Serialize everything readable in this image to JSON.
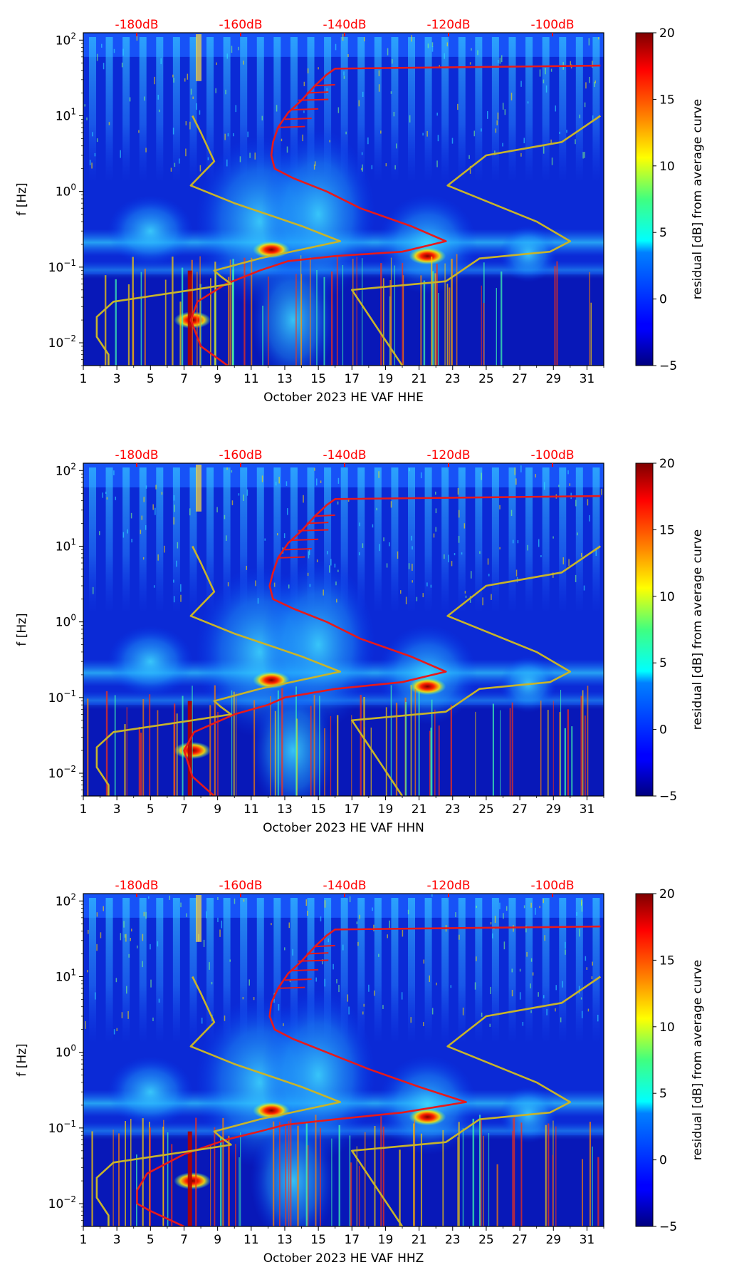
{
  "chart_data": [
    {
      "type": "heatmap",
      "title": "",
      "xlabel": "October 2023 HE VAF  HHE",
      "ylabel": "f [Hz]",
      "x_ticks": [
        "1",
        "3",
        "5",
        "7",
        "9",
        "11",
        "13",
        "15",
        "17",
        "19",
        "21",
        "23",
        "25",
        "27",
        "29",
        "31"
      ],
      "x_range": [
        1,
        32
      ],
      "y_scale": "log",
      "y_range": [
        0.005,
        125
      ],
      "y_ticks": [
        {
          "value": 0.01,
          "base": "10",
          "exp": "−2"
        },
        {
          "value": 0.1,
          "base": "10",
          "exp": "−1"
        },
        {
          "value": 1,
          "base": "10",
          "exp": "0"
        },
        {
          "value": 10,
          "base": "10",
          "exp": "1"
        },
        {
          "value": 100,
          "base": "10",
          "exp": "2"
        }
      ],
      "top_axis_labels": [
        "-180dB",
        "-160dB",
        "-140dB",
        "-120dB",
        "-100dB"
      ],
      "colorbar": {
        "label": "residual [dB] from average curve",
        "min": -5,
        "max": 20,
        "ticks": [
          "−5",
          "0",
          "5",
          "10",
          "15",
          "20"
        ]
      },
      "series": [
        {
          "name": "average PSD curve",
          "color": "#e8191a",
          "points": [
            [
              9.6,
              0.005
            ],
            [
              8,
              0.009
            ],
            [
              7.4,
              0.02
            ],
            [
              7.8,
              0.035
            ],
            [
              9.5,
              0.06
            ],
            [
              11.5,
              0.09
            ],
            [
              13.2,
              0.12
            ],
            [
              16,
              0.14
            ],
            [
              20,
              0.16
            ],
            [
              22.6,
              0.22
            ],
            [
              20.5,
              0.35
            ],
            [
              17.5,
              0.6
            ],
            [
              15.5,
              1.0
            ],
            [
              13.5,
              1.5
            ],
            [
              12.4,
              2.0
            ],
            [
              12.2,
              3.0
            ],
            [
              12.3,
              4.5
            ],
            [
              12.6,
              7
            ],
            [
              13.2,
              11
            ],
            [
              14,
              16
            ],
            [
              14.8,
              25
            ],
            [
              15.5,
              35
            ],
            [
              16,
              42
            ],
            [
              31.8,
              46
            ]
          ]
        },
        {
          "name": "noise model high",
          "color": "#c8b42a",
          "points": [
            [
              20,
              0.005
            ],
            [
              17,
              0.05
            ],
            [
              22.6,
              0.065
            ],
            [
              24.6,
              0.13
            ],
            [
              28.8,
              0.16
            ],
            [
              30,
              0.22
            ],
            [
              28,
              0.4
            ],
            [
              22.7,
              1.2
            ],
            [
              25,
              3
            ],
            [
              29.5,
              4.5
            ],
            [
              31.8,
              10
            ]
          ]
        },
        {
          "name": "noise model low",
          "color": "#c8b42a",
          "points": [
            [
              2.5,
              0.005
            ],
            [
              2.5,
              0.007
            ],
            [
              1.8,
              0.012
            ],
            [
              1.8,
              0.022
            ],
            [
              2.8,
              0.035
            ],
            [
              7.5,
              0.05
            ],
            [
              9.8,
              0.06
            ],
            [
              9.2,
              0.075
            ],
            [
              8.8,
              0.09
            ],
            [
              11.5,
              0.13
            ],
            [
              16.3,
              0.22
            ],
            [
              14,
              0.35
            ],
            [
              10,
              0.7
            ],
            [
              7.4,
              1.2
            ],
            [
              8.8,
              2.5
            ],
            [
              8,
              6
            ],
            [
              7.5,
              10
            ]
          ]
        }
      ],
      "hot_spots": [
        {
          "x": 12.2,
          "f": 0.17,
          "value": 18
        },
        {
          "x": 21.5,
          "f": 0.14,
          "value": 16
        },
        {
          "x": 7.5,
          "f": 0.02,
          "value": 20
        }
      ]
    },
    {
      "type": "heatmap",
      "title": "",
      "xlabel": "October 2023 HE VAF  HHN",
      "ylabel": "f [Hz]",
      "x_ticks": [
        "1",
        "3",
        "5",
        "7",
        "9",
        "11",
        "13",
        "15",
        "17",
        "19",
        "21",
        "23",
        "25",
        "27",
        "29",
        "31"
      ],
      "x_range": [
        1,
        32
      ],
      "y_scale": "log",
      "y_range": [
        0.005,
        125
      ],
      "y_ticks": [
        {
          "value": 0.01,
          "base": "10",
          "exp": "−2"
        },
        {
          "value": 0.1,
          "base": "10",
          "exp": "−1"
        },
        {
          "value": 1,
          "base": "10",
          "exp": "0"
        },
        {
          "value": 10,
          "base": "10",
          "exp": "1"
        },
        {
          "value": 100,
          "base": "10",
          "exp": "2"
        }
      ],
      "top_axis_labels": [
        "-180dB",
        "-160dB",
        "-140dB",
        "-120dB",
        "-100dB"
      ],
      "colorbar": {
        "label": "residual [dB] from average curve",
        "min": -5,
        "max": 20,
        "ticks": [
          "−5",
          "0",
          "5",
          "10",
          "15",
          "20"
        ]
      },
      "series": [
        {
          "name": "average PSD curve",
          "color": "#e8191a",
          "points": [
            [
              8.8,
              0.005
            ],
            [
              7.5,
              0.009
            ],
            [
              7.0,
              0.02
            ],
            [
              7.6,
              0.035
            ],
            [
              10,
              0.06
            ],
            [
              12,
              0.08
            ],
            [
              13,
              0.1
            ],
            [
              16,
              0.13
            ],
            [
              20,
              0.16
            ],
            [
              22.6,
              0.22
            ],
            [
              20.5,
              0.35
            ],
            [
              17.5,
              0.6
            ],
            [
              15.5,
              1.0
            ],
            [
              13.5,
              1.5
            ],
            [
              12.3,
              2.0
            ],
            [
              12.1,
              3.0
            ],
            [
              12.3,
              4.5
            ],
            [
              12.6,
              7
            ],
            [
              13.2,
              11
            ],
            [
              14,
              16
            ],
            [
              14.8,
              25
            ],
            [
              15.5,
              35
            ],
            [
              16,
              42
            ],
            [
              31.8,
              46
            ]
          ]
        },
        {
          "name": "noise model high",
          "color": "#c8b42a",
          "points": [
            [
              20,
              0.005
            ],
            [
              17,
              0.05
            ],
            [
              22.6,
              0.065
            ],
            [
              24.6,
              0.13
            ],
            [
              28.8,
              0.16
            ],
            [
              30,
              0.22
            ],
            [
              28,
              0.4
            ],
            [
              22.7,
              1.2
            ],
            [
              25,
              3
            ],
            [
              29.5,
              4.5
            ],
            [
              31.8,
              10
            ]
          ]
        },
        {
          "name": "noise model low",
          "color": "#c8b42a",
          "points": [
            [
              2.5,
              0.005
            ],
            [
              2.5,
              0.007
            ],
            [
              1.8,
              0.012
            ],
            [
              1.8,
              0.022
            ],
            [
              2.8,
              0.035
            ],
            [
              7.5,
              0.05
            ],
            [
              9.8,
              0.06
            ],
            [
              9.2,
              0.075
            ],
            [
              8.8,
              0.09
            ],
            [
              11.5,
              0.13
            ],
            [
              16.3,
              0.22
            ],
            [
              14,
              0.35
            ],
            [
              10,
              0.7
            ],
            [
              7.4,
              1.2
            ],
            [
              8.8,
              2.5
            ],
            [
              8,
              6
            ],
            [
              7.5,
              10
            ]
          ]
        }
      ],
      "hot_spots": [
        {
          "x": 12.2,
          "f": 0.17,
          "value": 18
        },
        {
          "x": 21.5,
          "f": 0.14,
          "value": 16
        },
        {
          "x": 7.5,
          "f": 0.02,
          "value": 20
        }
      ]
    },
    {
      "type": "heatmap",
      "title": "",
      "xlabel": "October 2023 HE VAF  HHZ",
      "ylabel": "f [Hz]",
      "x_ticks": [
        "1",
        "3",
        "5",
        "7",
        "9",
        "11",
        "13",
        "15",
        "17",
        "19",
        "21",
        "23",
        "25",
        "27",
        "29",
        "31"
      ],
      "x_range": [
        1,
        32
      ],
      "y_scale": "log",
      "y_range": [
        0.005,
        125
      ],
      "y_ticks": [
        {
          "value": 0.01,
          "base": "10",
          "exp": "−2"
        },
        {
          "value": 0.1,
          "base": "10",
          "exp": "−1"
        },
        {
          "value": 1,
          "base": "10",
          "exp": "0"
        },
        {
          "value": 10,
          "base": "10",
          "exp": "1"
        },
        {
          "value": 100,
          "base": "10",
          "exp": "2"
        }
      ],
      "top_axis_labels": [
        "-180dB",
        "-160dB",
        "-140dB",
        "-120dB",
        "-100dB"
      ],
      "colorbar": {
        "label": "residual [dB] from average curve",
        "min": -5,
        "max": 20,
        "ticks": [
          "−5",
          "0",
          "5",
          "10",
          "15",
          "20"
        ]
      },
      "series": [
        {
          "name": "average PSD curve",
          "color": "#e8191a",
          "points": [
            [
              7,
              0.005
            ],
            [
              5,
              0.008
            ],
            [
              4.2,
              0.01
            ],
            [
              4.2,
              0.015
            ],
            [
              4.8,
              0.025
            ],
            [
              7,
              0.045
            ],
            [
              9.5,
              0.07
            ],
            [
              11.5,
              0.09
            ],
            [
              13,
              0.11
            ],
            [
              16,
              0.13
            ],
            [
              20,
              0.16
            ],
            [
              23.8,
              0.22
            ],
            [
              21,
              0.35
            ],
            [
              18,
              0.6
            ],
            [
              15.5,
              1.0
            ],
            [
              13.5,
              1.5
            ],
            [
              12.4,
              2.0
            ],
            [
              12.1,
              3.0
            ],
            [
              12.2,
              4.5
            ],
            [
              12.6,
              7
            ],
            [
              13.2,
              11
            ],
            [
              14,
              16
            ],
            [
              14.8,
              25
            ],
            [
              15.5,
              35
            ],
            [
              16,
              42
            ],
            [
              31.8,
              46
            ]
          ]
        },
        {
          "name": "noise model high",
          "color": "#c8b42a",
          "points": [
            [
              20,
              0.005
            ],
            [
              17,
              0.05
            ],
            [
              22.6,
              0.065
            ],
            [
              24.6,
              0.13
            ],
            [
              28.8,
              0.16
            ],
            [
              30,
              0.22
            ],
            [
              28,
              0.4
            ],
            [
              22.7,
              1.2
            ],
            [
              25,
              3
            ],
            [
              29.5,
              4.5
            ],
            [
              31.8,
              10
            ]
          ]
        },
        {
          "name": "noise model low",
          "color": "#c8b42a",
          "points": [
            [
              2.5,
              0.005
            ],
            [
              2.5,
              0.007
            ],
            [
              1.8,
              0.012
            ],
            [
              1.8,
              0.022
            ],
            [
              2.8,
              0.035
            ],
            [
              7.5,
              0.05
            ],
            [
              9.8,
              0.06
            ],
            [
              9.2,
              0.075
            ],
            [
              8.8,
              0.09
            ],
            [
              11.5,
              0.13
            ],
            [
              16.3,
              0.22
            ],
            [
              14,
              0.35
            ],
            [
              10,
              0.7
            ],
            [
              7.4,
              1.2
            ],
            [
              8.8,
              2.5
            ],
            [
              8,
              6
            ],
            [
              7.5,
              10
            ]
          ]
        }
      ],
      "hot_spots": [
        {
          "x": 12.2,
          "f": 0.17,
          "value": 18
        },
        {
          "x": 21.5,
          "f": 0.14,
          "value": 16
        },
        {
          "x": 7.5,
          "f": 0.02,
          "value": 20
        }
      ]
    }
  ]
}
